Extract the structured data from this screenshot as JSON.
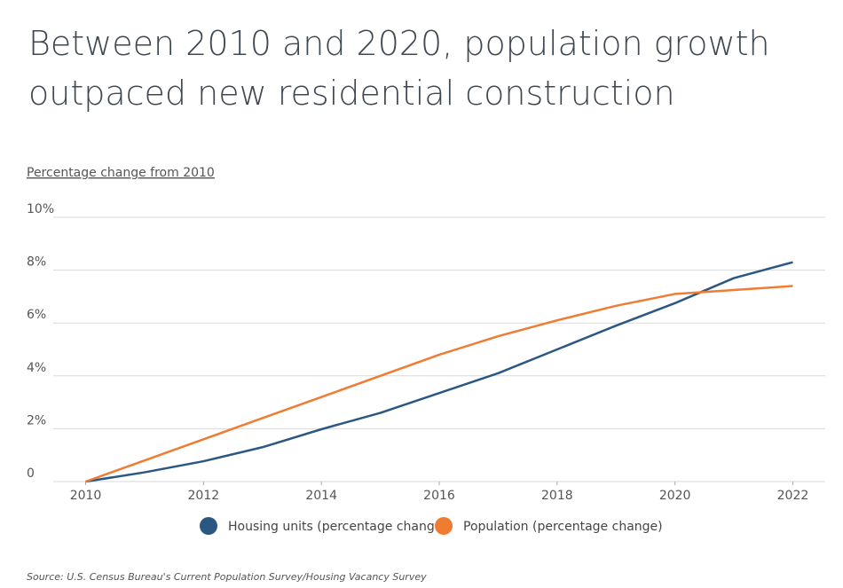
{
  "chart_data": {
    "type": "line",
    "title": [
      "Between 2010 and 2020, population growth",
      "outpaced new residential construction"
    ],
    "y_label": "Percentage change from 2010",
    "x": [
      2010,
      2011,
      2012,
      2013,
      2014,
      2015,
      2016,
      2017,
      2018,
      2019,
      2020,
      2021,
      2022
    ],
    "series": [
      {
        "name": "Housing units (percentage change)",
        "color": "#2b5783",
        "values": [
          0,
          0.35,
          0.77,
          1.3,
          1.98,
          2.6,
          3.35,
          4.1,
          5.0,
          5.9,
          6.75,
          7.7,
          8.3
        ]
      },
      {
        "name": "Population (percentage change)",
        "color": "#f07c33",
        "values": [
          0,
          0.8,
          1.6,
          2.4,
          3.2,
          4.0,
          4.8,
          5.5,
          6.1,
          6.65,
          7.1,
          7.25,
          7.4
        ]
      }
    ],
    "xlim": [
      2009.45,
      2022.55
    ],
    "xticks": [
      2010,
      2012,
      2014,
      2016,
      2018,
      2020,
      2022
    ],
    "ylim": [
      0,
      10
    ],
    "yticks": [
      0,
      {
        "value": 2,
        "label": "2%"
      },
      {
        "value": 4,
        "label": "4%"
      },
      {
        "value": 6,
        "label": "6%"
      },
      {
        "value": 8,
        "label": "8%"
      },
      {
        "value": 10,
        "label": "10%"
      }
    ],
    "grid": true,
    "source": "Source:  U.S. Census Bureau's Current Population Survey/Housing Vacancy Survey"
  }
}
